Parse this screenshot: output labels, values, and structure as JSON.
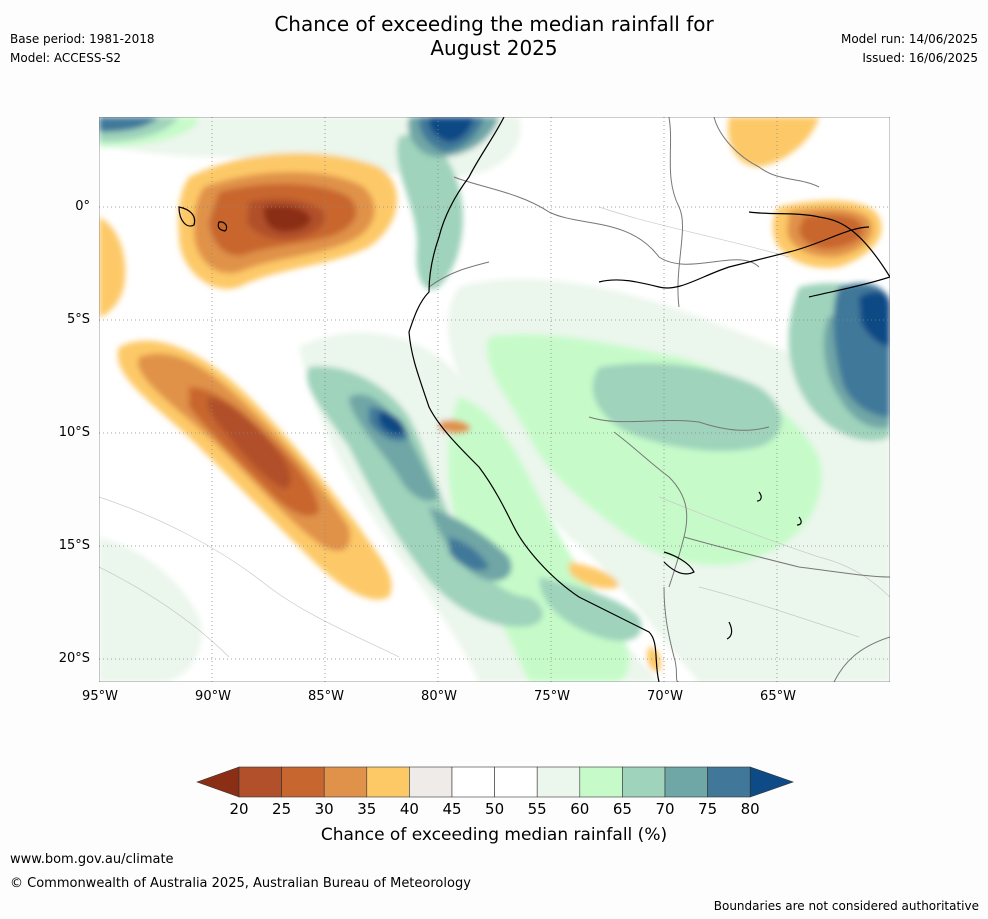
{
  "header": {
    "title_line1": "Chance of exceeding the median rainfall for",
    "title_line2": "August 2025",
    "base_period": "Base period: 1981-2018",
    "model": "Model: ACCESS-S2",
    "model_run": "Model run: 14/06/2025",
    "issued": "Issued: 16/06/2025"
  },
  "map": {
    "latitude_labels": [
      "0°",
      "5°S",
      "10°S",
      "15°S",
      "20°S"
    ],
    "longitude_labels": [
      "95°W",
      "90°W",
      "85°W",
      "80°W",
      "75°W",
      "70°W",
      "65°W"
    ]
  },
  "colorbar": {
    "ticks": [
      "20",
      "25",
      "30",
      "35",
      "40",
      "45",
      "50",
      "55",
      "60",
      "65",
      "70",
      "75",
      "80"
    ],
    "colors": [
      "#8b2e16",
      "#b1502a",
      "#c8662f",
      "#e0924a",
      "#fdc967",
      "#efebe8",
      "#ffffff",
      "#ffffff",
      "#ebf6ec",
      "#c6fbc9",
      "#9fd3bb",
      "#6fa6a6",
      "#41789a",
      "#0e4a85"
    ],
    "title": "Chance of exceeding median rainfall (%)"
  },
  "footer": {
    "website": "www.bom.gov.au/climate",
    "copyright": "© Commonwealth of Australia 2025, Australian Bureau of Meteorology",
    "disclaimer": "Boundaries are not considered authoritative"
  }
}
